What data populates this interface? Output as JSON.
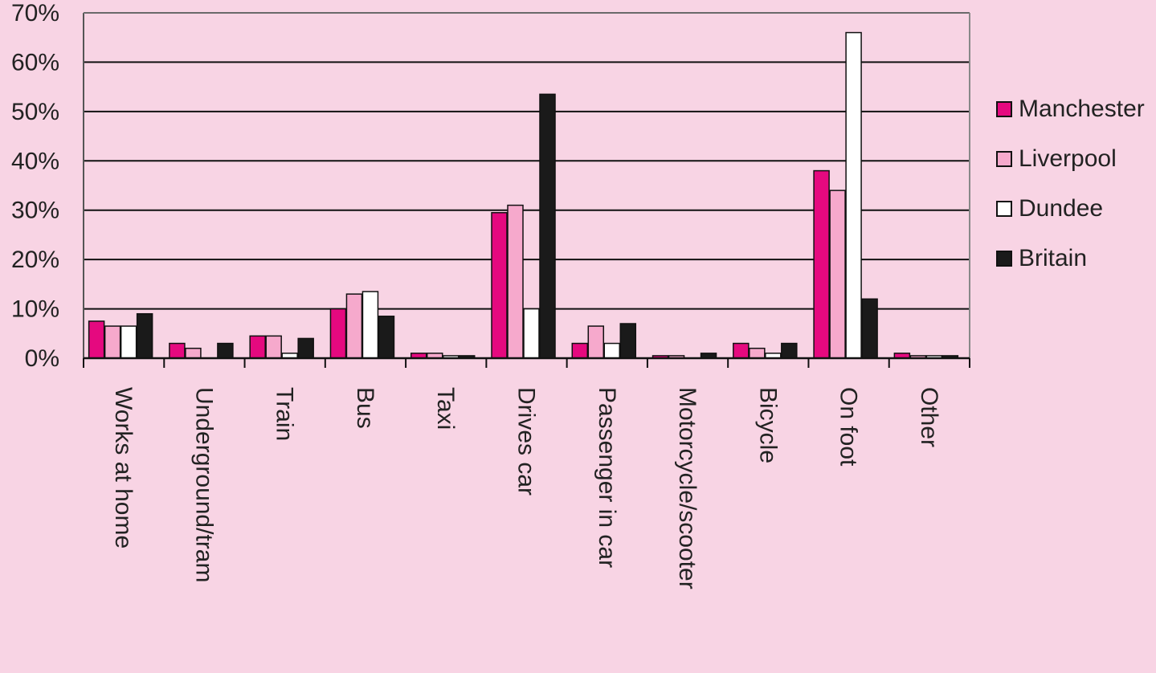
{
  "chart_data": {
    "type": "bar",
    "title": "",
    "xlabel": "",
    "ylabel": "",
    "ylim": [
      0,
      70
    ],
    "yticks": [
      "0%",
      "10%",
      "20%",
      "30%",
      "40%",
      "50%",
      "60%",
      "70%"
    ],
    "grid": true,
    "legend_position": "right",
    "categories": [
      "Works at home",
      "Underground/tram",
      "Train",
      "Bus",
      "Taxi",
      "Drives car",
      "Passenger in car",
      "Motorcycle/scooter",
      "Bicycle",
      "On foot",
      "Other"
    ],
    "series": [
      {
        "name": "Manchester",
        "color": "#e5097f",
        "values": [
          7.5,
          3,
          4.5,
          10,
          1,
          29.5,
          3,
          0.5,
          3,
          38,
          1
        ]
      },
      {
        "name": "Liverpool",
        "color": "#f6a9cc",
        "values": [
          6.5,
          2,
          4.5,
          13,
          1,
          31,
          6.5,
          0.5,
          2,
          34,
          0.5
        ]
      },
      {
        "name": "Dundee",
        "color": "#ffffff",
        "values": [
          6.5,
          0,
          1,
          13.5,
          0.5,
          10,
          3,
          0,
          1,
          66,
          0.5
        ]
      },
      {
        "name": "Britain",
        "color": "#1a1a1a",
        "values": [
          9,
          3,
          4,
          8.5,
          0.5,
          53.5,
          7,
          1,
          3,
          12,
          0.5
        ]
      }
    ]
  }
}
